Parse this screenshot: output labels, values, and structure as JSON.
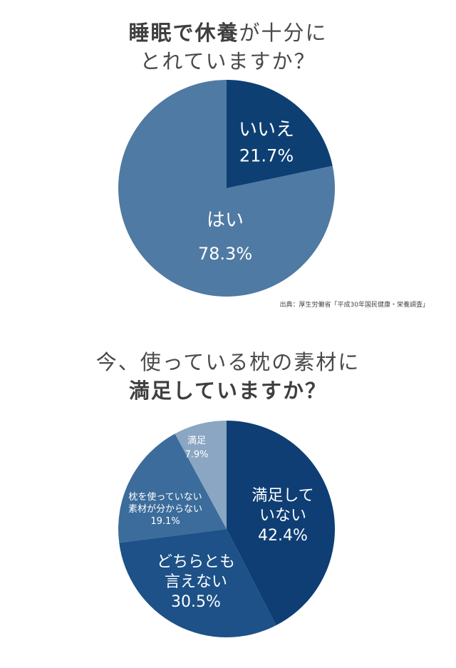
{
  "colors": {
    "dark": "#0d3f73",
    "mid": "#4f7aa3",
    "slice_42": "#0e3e74",
    "slice_30": "#1d5187",
    "slice_19": "#3c6c9b",
    "slice_7": "#8aa6c2"
  },
  "chart1": {
    "title_bold": "睡眠で休養",
    "title_rest1": "が十分に",
    "title_line2": "とれていますか？",
    "source": "出典：厚生労働省「平成30年国民健康・栄養調査」"
  },
  "chart2": {
    "title_line1": "今、使っている枕の素材に",
    "title_bold": "満足していますか？"
  },
  "chart_data": [
    {
      "type": "pie",
      "title": "睡眠で休養が十分にとれていますか？",
      "slices": [
        {
          "label": "いいえ",
          "value": 21.7,
          "display": "21.7%",
          "color": "#0d3f73"
        },
        {
          "label": "はい",
          "value": 78.3,
          "display": "78.3%",
          "color": "#4f7aa3"
        }
      ]
    },
    {
      "type": "pie",
      "title": "今、使っている枕の素材に満足していますか？",
      "slices": [
        {
          "label": "満足して|いない",
          "value": 42.4,
          "display": "42.4%",
          "color": "#0e3e74"
        },
        {
          "label": "どちらとも|言えない",
          "value": 30.5,
          "display": "30.5%",
          "color": "#1d5187"
        },
        {
          "label": "枕を使っていない|素材が分からない",
          "value": 19.1,
          "display": "19.1%",
          "color": "#3c6c9b"
        },
        {
          "label": "満足",
          "value": 7.9,
          "display": "7.9%",
          "color": "#8aa6c2"
        }
      ]
    }
  ]
}
